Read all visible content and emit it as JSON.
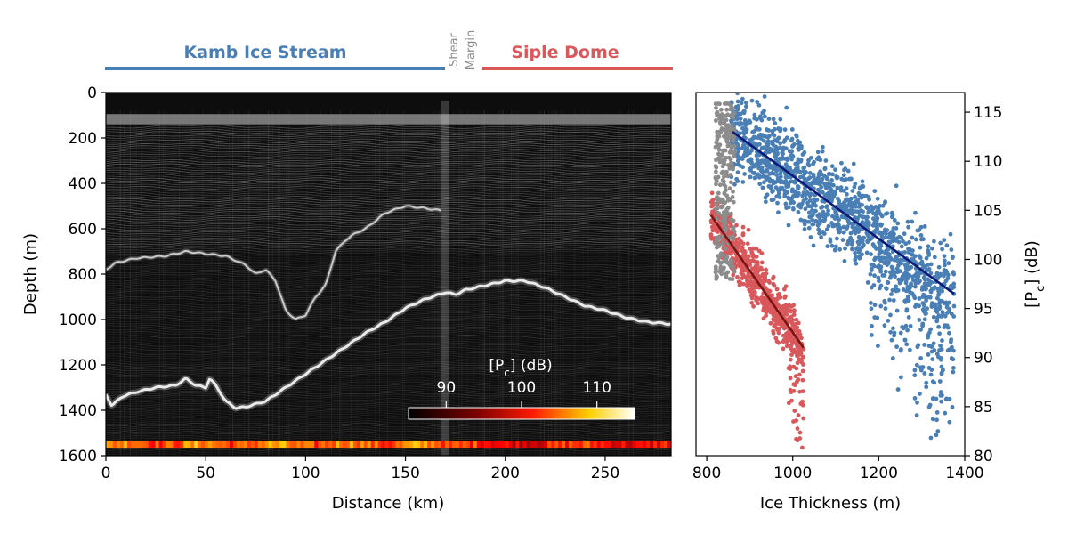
{
  "header": {
    "kamb_label": "Kamb Ice Stream",
    "shear_label_1": "Shear",
    "shear_label_2": "Margin",
    "siple_label": "Siple Dome",
    "kamb_color": "#4a7fb5",
    "siple_color": "#d9585b",
    "shear_color": "#8c8c8c"
  },
  "chart_data": [
    {
      "type": "heatmap",
      "description_role": "radargram",
      "xlabel": "Distance (km)",
      "ylabel": "Depth (m)",
      "xlim": [
        0,
        283
      ],
      "ylim": [
        1600,
        0
      ],
      "x_ticks": [
        "0",
        "50",
        "100",
        "150",
        "200",
        "250"
      ],
      "y_ticks": [
        "0",
        "200",
        "400",
        "600",
        "800",
        "1000",
        "1200",
        "1400",
        "1600"
      ],
      "bed_trace": {
        "distance_km": [
          0,
          3,
          8,
          15,
          25,
          35,
          40,
          45,
          50,
          52,
          55,
          60,
          65,
          70,
          80,
          90,
          100,
          110,
          120,
          130,
          140,
          150,
          155,
          160,
          165,
          170,
          175,
          180,
          185,
          190,
          200,
          210,
          220,
          230,
          240,
          250,
          260,
          270,
          283
        ],
        "depth_m": [
          1330,
          1380,
          1340,
          1320,
          1300,
          1290,
          1260,
          1290,
          1300,
          1260,
          1290,
          1360,
          1390,
          1385,
          1360,
          1300,
          1240,
          1180,
          1120,
          1060,
          1010,
          950,
          930,
          910,
          895,
          880,
          890,
          870,
          860,
          850,
          830,
          830,
          860,
          900,
          940,
          960,
          990,
          1010,
          1020
        ]
      },
      "internal_layer": {
        "distance_km": [
          0,
          5,
          15,
          30,
          40,
          50,
          60,
          70,
          75,
          80,
          85,
          90,
          95,
          100,
          105,
          110,
          115,
          120,
          125,
          130,
          140,
          150,
          160,
          168
        ],
        "depth_m": [
          780,
          750,
          730,
          720,
          700,
          710,
          720,
          760,
          800,
          780,
          830,
          960,
          1000,
          980,
          900,
          850,
          700,
          650,
          620,
          600,
          530,
          500,
          510,
          520
        ]
      },
      "colorbar": {
        "label": "[P",
        "label_sub": "c",
        "label_suffix": "] (dB)",
        "ticks": [
          "90",
          "100",
          "110"
        ],
        "range": [
          85,
          115
        ]
      }
    },
    {
      "type": "scatter",
      "xlabel": "Ice Thickness (m)",
      "ylabel": "[P",
      "ylabel_sub": "c",
      "ylabel_suffix": "] (dB)",
      "xlim": [
        775,
        1400
      ],
      "ylim": [
        80,
        117
      ],
      "x_ticks": [
        "800",
        "1000",
        "1200",
        "1400"
      ],
      "y_ticks": [
        "80",
        "85",
        "90",
        "95",
        "100",
        "105",
        "110",
        "115"
      ],
      "series": [
        {
          "color": "#4a7fb5",
          "x_range": [
            855,
            1375
          ],
          "fit": {
            "x": [
              860,
              1375
            ],
            "y": [
              113,
              96.5
            ],
            "color": "#0b1a7a"
          }
        },
        {
          "color": "#d9585b",
          "x_range": [
            810,
            1025
          ],
          "fit": {
            "x": [
              810,
              1025
            ],
            "y": [
              104.5,
              91
            ],
            "color": "#7a1414"
          }
        },
        {
          "color": "#8c8c8c",
          "x_range": [
            820,
            865
          ]
        }
      ]
    }
  ]
}
